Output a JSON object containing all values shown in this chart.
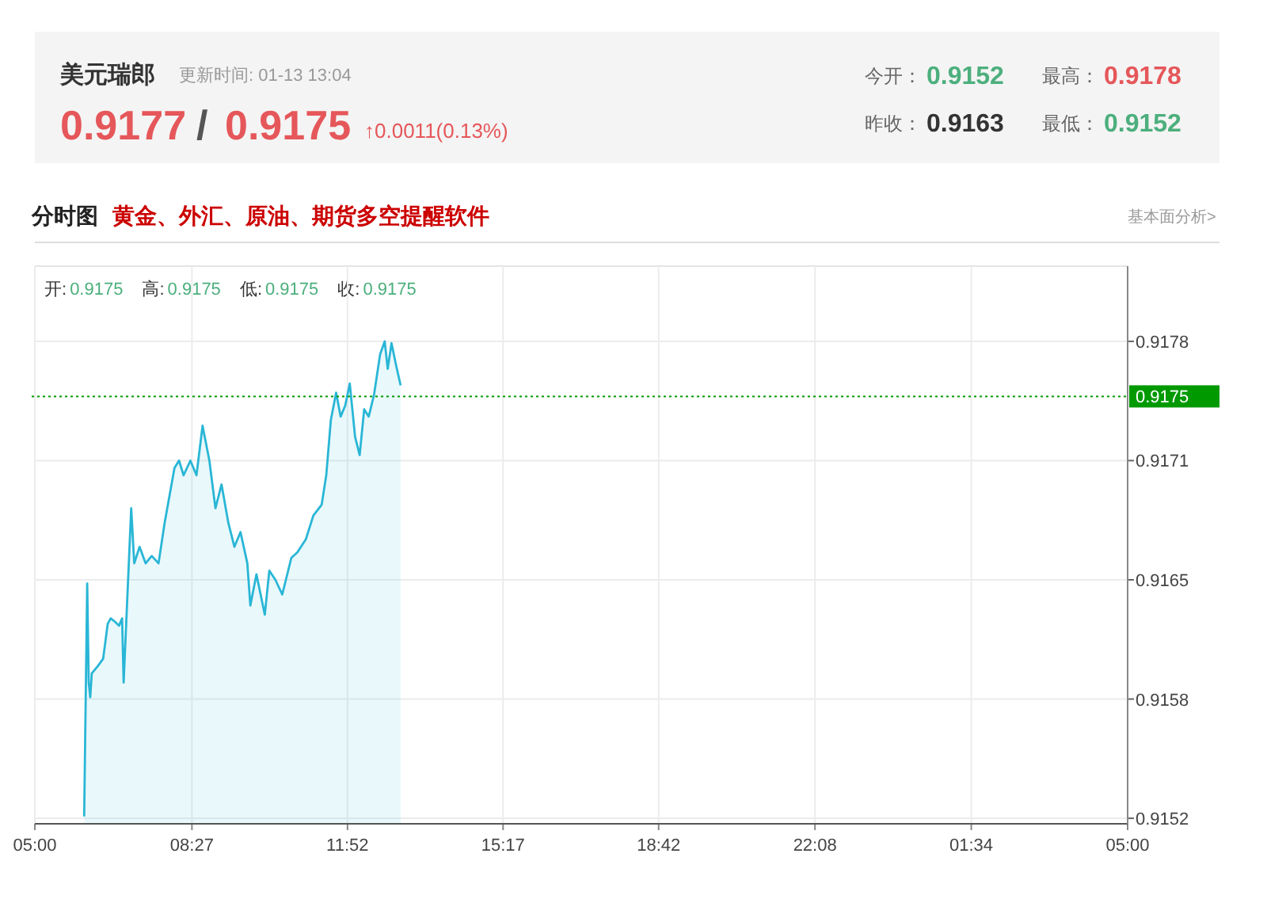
{
  "chart_data": {
    "type": "area",
    "title": "美元瑞郎",
    "subtitle": "更新时间: 01-13 13:04",
    "annotations": [
      "0.9177",
      "/",
      "0.9175",
      "↑0.0011(0.13%)",
      "今开：",
      "0.9152",
      "最高：",
      "0.9178",
      "昨收：",
      "0.9163",
      "最低：",
      "0.9152",
      "分时图",
      "黄金、外汇、原油、期货多空提醒软件",
      "基本面分析>",
      "开:",
      "0.9175",
      "高:",
      "0.9175",
      "低:",
      "0.9175",
      "收:",
      "0.9175"
    ],
    "xlim": [
      "--01-13T05:00",
      "--01-14T05:00"
    ],
    "xticks": [
      {
        "value": "--01-13T05:00",
        "label": "05:00"
      },
      {
        "value": "--01-13T08:27",
        "label": "08:27"
      },
      {
        "value": "--01-13T11:52",
        "label": "11:52"
      },
      {
        "value": "--01-13T15:17",
        "label": "15:17"
      },
      {
        "value": "--01-13T18:42",
        "label": "18:42"
      },
      {
        "value": "--01-13T22:08",
        "label": "22:08"
      },
      {
        "value": "--01-14T01:34",
        "label": "01:34"
      },
      {
        "value": "--01-14T05:00",
        "label": "05:00"
      }
    ],
    "ylim": [
      0.91517,
      0.91821
    ],
    "yticks": [
      {
        "value": 0.9152,
        "label": "0.9152"
      },
      {
        "value": 0.91585,
        "label": "0.9158"
      },
      {
        "value": 0.9165,
        "label": "0.9165"
      },
      {
        "value": 0.91715,
        "label": "0.9171"
      },
      {
        "value": 0.9178,
        "label": "0.9178"
      }
    ],
    "grid": true,
    "ref_lines": [
      {
        "axis": "y",
        "value": 0.9175,
        "label": "0.9175",
        "color": "#009900",
        "line_style": "dotted"
      }
    ],
    "series": [
      {
        "color": "#29b6d6",
        "x": [
          "--01-13T06:05",
          "--01-13T06:09",
          "--01-13T06:11",
          "--01-13T06:13",
          "--01-13T06:15",
          "--01-13T06:23",
          "--01-13T06:30",
          "--01-13T06:36",
          "--01-13T06:40",
          "--01-13T06:46",
          "--01-13T06:51",
          "--01-13T06:55",
          "--01-13T06:57",
          "--01-13T07:07",
          "--01-13T07:11",
          "--01-13T07:18",
          "--01-13T07:26",
          "--01-13T07:34",
          "--01-13T07:43",
          "--01-13T07:51",
          "--01-13T08:04",
          "--01-13T08:10",
          "--01-13T08:16",
          "--01-13T08:25",
          "--01-13T08:33",
          "--01-13T08:41",
          "--01-13T08:50",
          "--01-13T08:58",
          "--01-13T09:06",
          "--01-13T09:15",
          "--01-13T09:23",
          "--01-13T09:31",
          "--01-13T09:40",
          "--01-13T09:44",
          "--01-13T09:52",
          "--01-13T10:03",
          "--01-13T10:09",
          "--01-13T10:17",
          "--01-13T10:26",
          "--01-13T10:38",
          "--01-13T10:46",
          "--01-13T10:57",
          "--01-13T11:07",
          "--01-13T11:18",
          "--01-13T11:24",
          "--01-13T11:30",
          "--01-13T11:37",
          "--01-13T11:43",
          "--01-13T11:49",
          "--01-13T11:55",
          "--01-13T12:02",
          "--01-13T12:08",
          "--01-13T12:14",
          "--01-13T12:20",
          "--01-13T12:27",
          "--01-13T12:35",
          "--01-13T12:41",
          "--01-13T12:45",
          "--01-13T12:50",
          "--01-13T12:56",
          "--01-13T13:02"
        ],
        "values": [
          0.91521,
          0.91648,
          0.91594,
          0.91586,
          0.91599,
          0.91603,
          0.91607,
          0.91626,
          0.91629,
          0.91627,
          0.91625,
          0.91629,
          0.91594,
          0.91689,
          0.91659,
          0.91668,
          0.91659,
          0.91663,
          0.91659,
          0.91681,
          0.91711,
          0.91715,
          0.91707,
          0.91715,
          0.91707,
          0.91734,
          0.91715,
          0.91689,
          0.91702,
          0.91681,
          0.91668,
          0.91676,
          0.91659,
          0.91636,
          0.91653,
          0.91631,
          0.91655,
          0.9165,
          0.91642,
          0.91662,
          0.91665,
          0.91672,
          0.91685,
          0.91691,
          0.91707,
          0.91737,
          0.91752,
          0.91739,
          0.91745,
          0.91757,
          0.91728,
          0.91718,
          0.91743,
          0.91739,
          0.91751,
          0.91773,
          0.9178,
          0.91765,
          0.91779,
          0.91767,
          0.91756
        ]
      }
    ]
  }
}
